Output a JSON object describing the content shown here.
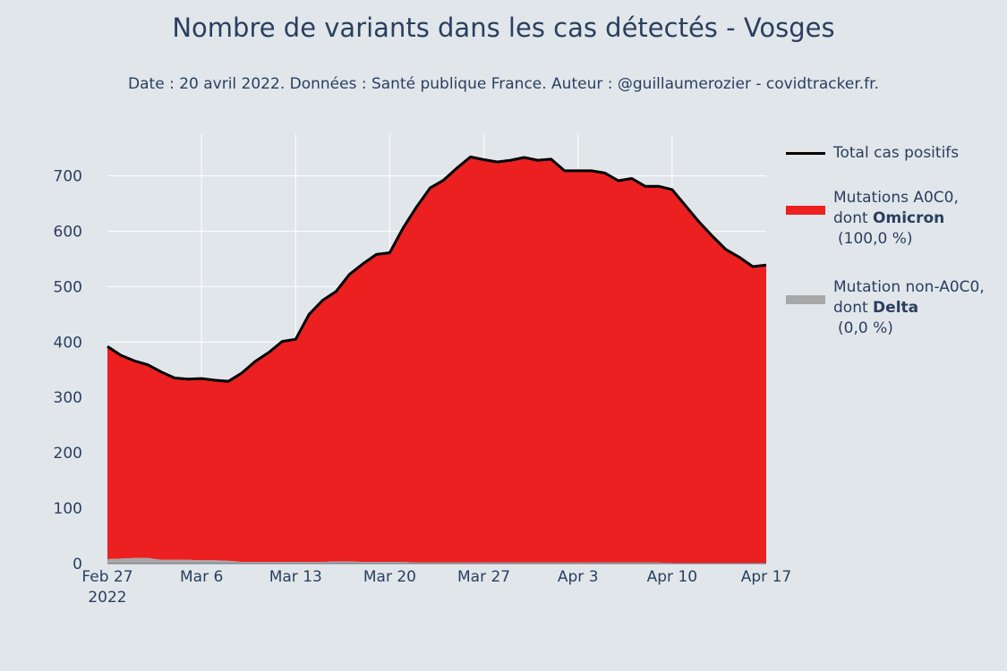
{
  "title": "Nombre de variants dans les cas détectés - Vosges",
  "subtitle": "Date : 20 avril 2022. Données : Santé publique France. Auteur : @guillaumerozier - covidtracker.fr.",
  "legend": {
    "total": "Total cas positifs",
    "omicron_line1": "Mutations A0C0,",
    "omicron_line2_prefix": "dont ",
    "omicron_line2_bold": "Omicron",
    "omicron_line3": "(100,0 %)",
    "delta_line1": "Mutation non-A0C0,",
    "delta_line2_prefix": "dont ",
    "delta_line2_bold": "Delta",
    "delta_line3": "(0,0 %)"
  },
  "colors": {
    "background": "#e1e6ea",
    "omicron": "#ec2020",
    "delta": "#a8a8a8",
    "total_line": "#000000",
    "grid": "#ffffff",
    "text": "#2a3f5f"
  },
  "chart_data": {
    "type": "area",
    "x_start": "2022-02-27",
    "x_end": "2022-04-17",
    "xlim": [
      "2022-02-27",
      "2022-04-17"
    ],
    "ylim": [
      0,
      775
    ],
    "x_ticks": [
      {
        "date": "2022-02-27",
        "label": "Feb 27",
        "label2": "2022"
      },
      {
        "date": "2022-03-06",
        "label": "Mar 6"
      },
      {
        "date": "2022-03-13",
        "label": "Mar 13"
      },
      {
        "date": "2022-03-20",
        "label": "Mar 20"
      },
      {
        "date": "2022-03-27",
        "label": "Mar 27"
      },
      {
        "date": "2022-04-03",
        "label": "Apr 3"
      },
      {
        "date": "2022-04-10",
        "label": "Apr 10"
      },
      {
        "date": "2022-04-17",
        "label": "Apr 17"
      }
    ],
    "y_ticks": [
      0,
      100,
      200,
      300,
      400,
      500,
      600,
      700
    ],
    "grid": true,
    "legend_position": "right",
    "dates": [
      "2022-02-27",
      "2022-02-28",
      "2022-03-01",
      "2022-03-02",
      "2022-03-03",
      "2022-03-04",
      "2022-03-05",
      "2022-03-06",
      "2022-03-07",
      "2022-03-08",
      "2022-03-09",
      "2022-03-10",
      "2022-03-11",
      "2022-03-12",
      "2022-03-13",
      "2022-03-14",
      "2022-03-15",
      "2022-03-16",
      "2022-03-17",
      "2022-03-18",
      "2022-03-19",
      "2022-03-20",
      "2022-03-21",
      "2022-03-22",
      "2022-03-23",
      "2022-03-24",
      "2022-03-25",
      "2022-03-26",
      "2022-03-27",
      "2022-03-28",
      "2022-03-29",
      "2022-03-30",
      "2022-03-31",
      "2022-04-01",
      "2022-04-02",
      "2022-04-03",
      "2022-04-04",
      "2022-04-05",
      "2022-04-06",
      "2022-04-07",
      "2022-04-08",
      "2022-04-09",
      "2022-04-10",
      "2022-04-11",
      "2022-04-12",
      "2022-04-13",
      "2022-04-14",
      "2022-04-15",
      "2022-04-16",
      "2022-04-17"
    ],
    "series": [
      {
        "name": "Mutation non-A0C0, dont Delta (0,0 %)",
        "values": [
          8,
          9,
          10,
          10,
          7,
          7,
          7,
          6,
          6,
          5,
          3,
          3,
          3,
          3,
          3,
          3,
          3,
          4,
          4,
          3,
          3,
          3,
          3,
          2,
          2,
          2,
          2,
          2,
          2,
          2,
          2,
          2,
          2,
          2,
          2,
          2,
          2,
          2,
          2,
          2,
          2,
          2,
          1,
          1,
          1,
          1,
          1,
          1,
          1,
          1
        ]
      },
      {
        "name": "Mutations A0C0, dont Omicron (100,0 %)",
        "values": [
          384,
          367,
          356,
          349,
          339,
          328,
          326,
          328,
          325,
          324,
          341,
          362,
          378,
          398,
          402,
          447,
          472,
          487,
          518,
          538,
          555,
          558,
          603,
          642,
          676,
          690,
          712,
          732,
          727,
          723,
          726,
          731,
          726,
          728,
          707,
          707,
          707,
          703,
          689,
          693,
          679,
          679,
          674,
          645,
          616,
          590,
          566,
          552,
          535,
          538
        ]
      },
      {
        "name": "Total cas positifs",
        "values": [
          392,
          376,
          366,
          359,
          346,
          335,
          333,
          334,
          331,
          329,
          344,
          365,
          381,
          401,
          405,
          450,
          475,
          491,
          522,
          541,
          558,
          561,
          606,
          644,
          678,
          692,
          714,
          734,
          729,
          725,
          728,
          733,
          728,
          730,
          709,
          709,
          709,
          705,
          691,
          695,
          681,
          681,
          675,
          646,
          617,
          591,
          567,
          553,
          536,
          539
        ]
      }
    ]
  }
}
